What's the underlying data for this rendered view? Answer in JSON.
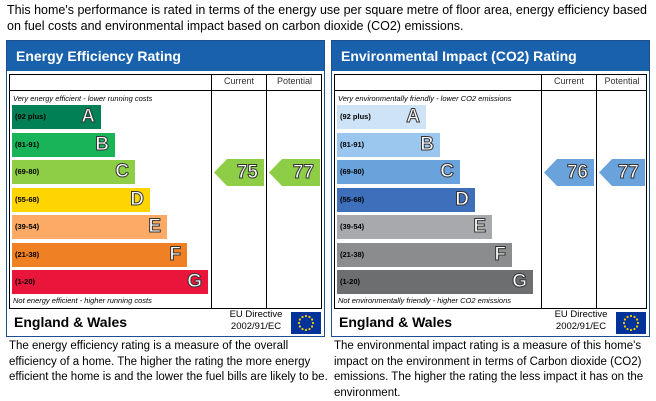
{
  "intro": "This home's performance is rated in terms of the energy use per square metre of floor area, energy efficiency based on fuel costs and environmental impact based on carbon dioxide (CO2) emissions.",
  "colors": {
    "header_blue": "#1a61ad",
    "eu_flag": "#003399",
    "eu_stars": "#ffcc00"
  },
  "energy": {
    "title": "Energy Efficiency Rating",
    "col_current": "Current",
    "col_potential": "Potential",
    "top_note": "Very energy efficient - lower running costs",
    "bottom_note": "Not energy efficient - higher running costs",
    "bands": [
      {
        "range": "(92 plus)",
        "letter": "A",
        "color": "#008054"
      },
      {
        "range": "(81-91)",
        "letter": "B",
        "color": "#19b459"
      },
      {
        "range": "(69-80)",
        "letter": "C",
        "color": "#8dce46"
      },
      {
        "range": "(55-68)",
        "letter": "D",
        "color": "#ffd500"
      },
      {
        "range": "(39-54)",
        "letter": "E",
        "color": "#fcaa65"
      },
      {
        "range": "(21-38)",
        "letter": "F",
        "color": "#ef8023"
      },
      {
        "range": "(1-20)",
        "letter": "G",
        "color": "#e9153b"
      }
    ],
    "current": {
      "value": "75",
      "color": "#8dce46"
    },
    "potential": {
      "value": "77",
      "color": "#8dce46"
    },
    "region": "England & Wales",
    "directive_line1": "EU Directive",
    "directive_line2": "2002/91/EC",
    "description": "The energy efficiency rating is a measure of the overall efficiency of a home. The higher the rating the more energy efficient the home is and the lower the fuel bills are likely to be."
  },
  "environment": {
    "title": "Environmental Impact (CO2) Rating",
    "col_current": "Current",
    "col_potential": "Potential",
    "top_note": "Very environmentally friendly - lower CO2 emissions",
    "bottom_note": "Not environmentally friendly - higher CO2 emissions",
    "bands": [
      {
        "range": "(92 plus)",
        "letter": "A",
        "color": "#cfe3f6"
      },
      {
        "range": "(81-91)",
        "letter": "B",
        "color": "#9bc6ee"
      },
      {
        "range": "(69-80)",
        "letter": "C",
        "color": "#6aa3dc"
      },
      {
        "range": "(55-68)",
        "letter": "D",
        "color": "#3d6fba"
      },
      {
        "range": "(39-54)",
        "letter": "E",
        "color": "#a7a9ac"
      },
      {
        "range": "(21-38)",
        "letter": "F",
        "color": "#8a8c8e"
      },
      {
        "range": "(1-20)",
        "letter": "G",
        "color": "#6d6e70"
      }
    ],
    "current": {
      "value": "76",
      "color": "#6aa3dc"
    },
    "potential": {
      "value": "77",
      "color": "#6aa3dc"
    },
    "region": "England & Wales",
    "directive_line1": "EU Directive",
    "directive_line2": "2002/91/EC",
    "description": "The environmental impact rating is a measure of this home's impact on the environment in terms of Carbon dioxide (CO2) emissions. The higher the rating the less impact it has on the environment."
  }
}
